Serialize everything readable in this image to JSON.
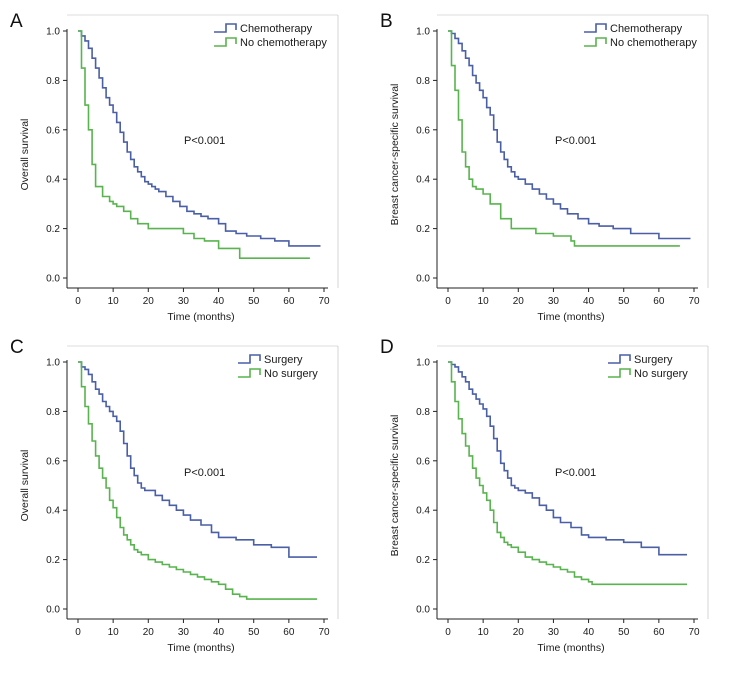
{
  "figure": {
    "colors": {
      "series_a": "#4a5fa5",
      "series_b": "#59b34f",
      "axis": "#222222"
    }
  },
  "chart_data": [
    {
      "type": "line",
      "panel_label": "A",
      "title": "",
      "xlabel": "Time (months)",
      "ylabel": "Overall survival",
      "xlim": [
        0,
        70
      ],
      "ylim": [
        0,
        1.0
      ],
      "x_ticks": [
        "0",
        "10",
        "20",
        "30",
        "40",
        "50",
        "60",
        "70"
      ],
      "y_ticks": [
        "0.0",
        "0.2",
        "0.4",
        "0.6",
        "0.8",
        "1.0"
      ],
      "annotation": "P<0.001",
      "legend_position": "top-right",
      "series": [
        {
          "name": "Chemotherapy",
          "x": [
            0,
            1,
            2,
            3,
            4,
            5,
            6,
            7,
            8,
            9,
            10,
            11,
            12,
            13,
            14,
            15,
            16,
            17,
            18,
            19,
            20,
            21,
            22,
            23,
            25,
            27,
            29,
            31,
            33,
            35,
            37,
            40,
            42,
            45,
            48,
            52,
            56,
            60,
            69
          ],
          "y": [
            1.0,
            0.98,
            0.96,
            0.93,
            0.89,
            0.85,
            0.81,
            0.77,
            0.73,
            0.7,
            0.67,
            0.63,
            0.59,
            0.55,
            0.51,
            0.48,
            0.45,
            0.43,
            0.41,
            0.39,
            0.38,
            0.37,
            0.36,
            0.35,
            0.33,
            0.31,
            0.29,
            0.27,
            0.26,
            0.25,
            0.24,
            0.22,
            0.19,
            0.18,
            0.17,
            0.16,
            0.15,
            0.13,
            0.13
          ]
        },
        {
          "name": "No chemotherapy",
          "x": [
            0,
            1,
            2,
            3,
            4,
            5,
            7,
            9,
            10,
            11,
            13,
            15,
            17,
            20,
            30,
            33,
            36,
            40,
            46,
            66
          ],
          "y": [
            1.0,
            0.85,
            0.7,
            0.6,
            0.46,
            0.37,
            0.33,
            0.31,
            0.3,
            0.29,
            0.27,
            0.24,
            0.22,
            0.2,
            0.18,
            0.16,
            0.15,
            0.12,
            0.08,
            0.08
          ]
        }
      ]
    },
    {
      "type": "line",
      "panel_label": "B",
      "title": "",
      "xlabel": "Time (months)",
      "ylabel": "Breast cancer-specific survival",
      "xlim": [
        0,
        70
      ],
      "ylim": [
        0,
        1.0
      ],
      "x_ticks": [
        "0",
        "10",
        "20",
        "30",
        "40",
        "50",
        "60",
        "70"
      ],
      "y_ticks": [
        "0.0",
        "0.2",
        "0.4",
        "0.6",
        "0.8",
        "1.0"
      ],
      "annotation": "P<0.001",
      "legend_position": "top-right",
      "series": [
        {
          "name": "Chemotherapy",
          "x": [
            0,
            1,
            2,
            3,
            4,
            5,
            6,
            7,
            8,
            9,
            10,
            11,
            12,
            13,
            14,
            15,
            16,
            17,
            18,
            19,
            20,
            22,
            24,
            26,
            28,
            30,
            32,
            34,
            37,
            40,
            43,
            47,
            52,
            60,
            69
          ],
          "y": [
            1.0,
            0.99,
            0.97,
            0.95,
            0.92,
            0.89,
            0.86,
            0.82,
            0.79,
            0.76,
            0.73,
            0.69,
            0.66,
            0.6,
            0.55,
            0.51,
            0.48,
            0.45,
            0.43,
            0.41,
            0.4,
            0.38,
            0.36,
            0.34,
            0.32,
            0.3,
            0.28,
            0.26,
            0.24,
            0.22,
            0.21,
            0.2,
            0.18,
            0.16,
            0.16
          ]
        },
        {
          "name": "No chemotherapy",
          "x": [
            0,
            1,
            2,
            3,
            4,
            5,
            6,
            7,
            8,
            10,
            12,
            15,
            18,
            20,
            25,
            30,
            35,
            36,
            66
          ],
          "y": [
            1.0,
            0.86,
            0.76,
            0.64,
            0.51,
            0.45,
            0.4,
            0.37,
            0.36,
            0.34,
            0.3,
            0.24,
            0.2,
            0.2,
            0.18,
            0.17,
            0.15,
            0.13,
            0.13
          ]
        }
      ]
    },
    {
      "type": "line",
      "panel_label": "C",
      "title": "",
      "xlabel": "Time (months)",
      "ylabel": "Overall survival",
      "xlim": [
        0,
        70
      ],
      "ylim": [
        0,
        1.0
      ],
      "x_ticks": [
        "0",
        "10",
        "20",
        "30",
        "40",
        "50",
        "60",
        "70"
      ],
      "y_ticks": [
        "0.0",
        "0.2",
        "0.4",
        "0.6",
        "0.8",
        "1.0"
      ],
      "annotation": "P<0.001",
      "legend_position": "top-right",
      "series": [
        {
          "name": "Surgery",
          "x": [
            0,
            1,
            2,
            3,
            4,
            5,
            6,
            7,
            8,
            9,
            10,
            11,
            12,
            13,
            14,
            15,
            16,
            17,
            18,
            19,
            20,
            22,
            24,
            26,
            28,
            30,
            32,
            35,
            38,
            40,
            45,
            50,
            55,
            60,
            68
          ],
          "y": [
            1.0,
            0.98,
            0.97,
            0.95,
            0.92,
            0.89,
            0.87,
            0.84,
            0.82,
            0.8,
            0.78,
            0.76,
            0.72,
            0.67,
            0.62,
            0.57,
            0.54,
            0.51,
            0.49,
            0.48,
            0.48,
            0.46,
            0.44,
            0.42,
            0.4,
            0.38,
            0.36,
            0.34,
            0.31,
            0.29,
            0.28,
            0.26,
            0.25,
            0.21,
            0.21
          ]
        },
        {
          "name": "No surgery",
          "x": [
            0,
            1,
            2,
            3,
            4,
            5,
            6,
            7,
            8,
            9,
            10,
            11,
            12,
            13,
            14,
            15,
            16,
            17,
            18,
            20,
            22,
            24,
            26,
            28,
            30,
            32,
            34,
            36,
            38,
            40,
            42,
            44,
            46,
            48,
            68
          ],
          "y": [
            1.0,
            0.9,
            0.82,
            0.75,
            0.68,
            0.62,
            0.57,
            0.53,
            0.49,
            0.44,
            0.41,
            0.37,
            0.33,
            0.3,
            0.28,
            0.26,
            0.24,
            0.23,
            0.22,
            0.2,
            0.19,
            0.18,
            0.17,
            0.16,
            0.15,
            0.14,
            0.13,
            0.12,
            0.11,
            0.1,
            0.08,
            0.06,
            0.05,
            0.04,
            0.04
          ]
        }
      ]
    },
    {
      "type": "line",
      "panel_label": "D",
      "title": "",
      "xlabel": "Time (months)",
      "ylabel": "Breast cancer-specific survival",
      "xlim": [
        0,
        70
      ],
      "ylim": [
        0,
        1.0
      ],
      "x_ticks": [
        "0",
        "10",
        "20",
        "30",
        "40",
        "50",
        "60",
        "70"
      ],
      "y_ticks": [
        "0.0",
        "0.2",
        "0.4",
        "0.6",
        "0.8",
        "1.0"
      ],
      "annotation": "P<0.001",
      "legend_position": "top-right",
      "series": [
        {
          "name": "Surgery",
          "x": [
            0,
            1,
            2,
            3,
            4,
            5,
            6,
            7,
            8,
            9,
            10,
            11,
            12,
            13,
            14,
            15,
            16,
            17,
            18,
            19,
            20,
            22,
            24,
            26,
            28,
            30,
            32,
            35,
            38,
            40,
            45,
            50,
            55,
            60,
            68
          ],
          "y": [
            1.0,
            0.99,
            0.98,
            0.96,
            0.94,
            0.92,
            0.89,
            0.87,
            0.85,
            0.83,
            0.81,
            0.78,
            0.74,
            0.69,
            0.64,
            0.59,
            0.56,
            0.53,
            0.5,
            0.49,
            0.48,
            0.47,
            0.45,
            0.42,
            0.4,
            0.37,
            0.35,
            0.33,
            0.3,
            0.29,
            0.28,
            0.27,
            0.25,
            0.22,
            0.22
          ]
        },
        {
          "name": "No surgery",
          "x": [
            0,
            1,
            2,
            3,
            4,
            5,
            6,
            7,
            8,
            9,
            10,
            11,
            12,
            13,
            14,
            15,
            16,
            17,
            18,
            20,
            22,
            24,
            26,
            28,
            30,
            32,
            34,
            36,
            38,
            40,
            41,
            68
          ],
          "y": [
            1.0,
            0.92,
            0.84,
            0.77,
            0.71,
            0.66,
            0.62,
            0.57,
            0.53,
            0.5,
            0.47,
            0.44,
            0.4,
            0.35,
            0.31,
            0.29,
            0.27,
            0.26,
            0.25,
            0.23,
            0.21,
            0.2,
            0.19,
            0.18,
            0.17,
            0.16,
            0.15,
            0.13,
            0.12,
            0.11,
            0.1,
            0.1
          ]
        }
      ]
    }
  ]
}
